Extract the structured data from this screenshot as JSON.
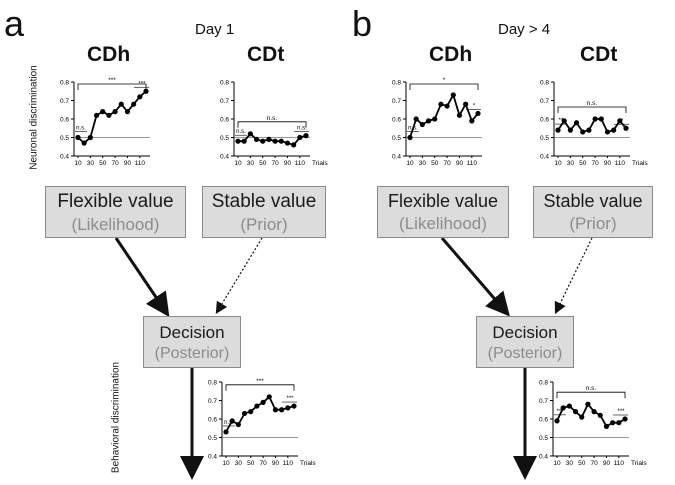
{
  "panels": [
    {
      "letter": "a",
      "day": "Day 1",
      "cdh_title": "CDh",
      "cdt_title": "CDt",
      "flexible": {
        "label": "Flexible value",
        "sub": "(Likelihood)"
      },
      "stable": {
        "label": "Stable value",
        "sub": "(Prior)"
      },
      "decision": {
        "label": "Decision",
        "sub": "(Posterior)"
      }
    },
    {
      "letter": "b",
      "day": "Day > 4",
      "cdh_title": "CDh",
      "cdt_title": "CDt",
      "flexible": {
        "label": "Flexible value",
        "sub": "(Likelihood)"
      },
      "stable": {
        "label": "Stable value",
        "sub": "(Prior)"
      },
      "decision": {
        "label": "Decision",
        "sub": "(Posterior)"
      }
    }
  ],
  "ylabels": {
    "neuronal": "Neuronal discrimination",
    "behavioral": "Behavioral discrimination"
  },
  "chart_data": [
    {
      "id": "a-cdh",
      "type": "line",
      "trials_label": "",
      "x": [
        10,
        20,
        30,
        40,
        50,
        60,
        70,
        80,
        90,
        100,
        110,
        120
      ],
      "y": [
        0.5,
        0.47,
        0.5,
        0.62,
        0.64,
        0.62,
        0.64,
        0.68,
        0.64,
        0.68,
        0.72,
        0.75
      ],
      "ylim": [
        0.4,
        0.8
      ],
      "yticks": [
        "0.4",
        "0.5",
        "0.6",
        "0.7",
        "0.8"
      ],
      "xticks": [
        "10",
        "30",
        "50",
        "70",
        "90",
        "110"
      ],
      "notes": {
        "start": "n.s.",
        "bracket": "***",
        "end": "***"
      }
    },
    {
      "id": "a-cdt",
      "type": "line",
      "trials_label": "Trials",
      "x": [
        10,
        20,
        30,
        40,
        50,
        60,
        70,
        80,
        90,
        100,
        110,
        120
      ],
      "y": [
        0.48,
        0.48,
        0.52,
        0.49,
        0.48,
        0.49,
        0.48,
        0.48,
        0.47,
        0.46,
        0.5,
        0.51
      ],
      "ylim": [
        0.4,
        0.8
      ],
      "yticks": [
        "0.4",
        "0.5",
        "0.6",
        "0.7",
        "0.8"
      ],
      "xticks": [
        "10",
        "30",
        "50",
        "70",
        "90",
        "110"
      ],
      "notes": {
        "start": "n.s.",
        "bracket": "n.s.",
        "end": "n.s."
      }
    },
    {
      "id": "b-cdh",
      "type": "line",
      "trials_label": "",
      "x": [
        10,
        20,
        30,
        40,
        50,
        60,
        70,
        80,
        90,
        100,
        110,
        120
      ],
      "y": [
        0.5,
        0.6,
        0.57,
        0.59,
        0.6,
        0.68,
        0.67,
        0.73,
        0.62,
        0.68,
        0.59,
        0.63
      ],
      "ylim": [
        0.4,
        0.8
      ],
      "yticks": [
        "0.4",
        "0.5",
        "0.6",
        "0.7",
        "0.8"
      ],
      "xticks": [
        "10",
        "30",
        "50",
        "70",
        "90",
        "110"
      ],
      "notes": {
        "start": "n.s.",
        "bracket": "*",
        "end": "*"
      }
    },
    {
      "id": "b-cdt",
      "type": "line",
      "trials_label": "Trials",
      "x": [
        10,
        20,
        30,
        40,
        50,
        60,
        70,
        80,
        90,
        100,
        110,
        120
      ],
      "y": [
        0.54,
        0.59,
        0.54,
        0.58,
        0.53,
        0.54,
        0.6,
        0.6,
        0.53,
        0.54,
        0.59,
        0.55
      ],
      "ylim": [
        0.4,
        0.8
      ],
      "yticks": [
        "0.4",
        "0.5",
        "0.6",
        "0.7",
        "0.8"
      ],
      "xticks": [
        "10",
        "30",
        "50",
        "70",
        "90",
        "110"
      ],
      "notes": {
        "start": "**",
        "bracket": "n.s.",
        "end": "*"
      }
    },
    {
      "id": "a-beh",
      "type": "line",
      "trials_label": "Trials",
      "x": [
        10,
        20,
        30,
        40,
        50,
        60,
        70,
        80,
        90,
        100,
        110,
        120
      ],
      "y": [
        0.53,
        0.59,
        0.57,
        0.63,
        0.64,
        0.67,
        0.69,
        0.72,
        0.65,
        0.65,
        0.66,
        0.67
      ],
      "ylim": [
        0.4,
        0.8
      ],
      "yticks": [
        "0.4",
        "0.5",
        "0.6",
        "0.7",
        "0.8"
      ],
      "xticks": [
        "10",
        "30",
        "50",
        "70",
        "90",
        "110"
      ],
      "notes": {
        "start": "n.s.",
        "bracket": "***",
        "end": "***"
      }
    },
    {
      "id": "b-beh",
      "type": "line",
      "trials_label": "Trials",
      "x": [
        10,
        20,
        30,
        40,
        50,
        60,
        70,
        80,
        90,
        100,
        110,
        120
      ],
      "y": [
        0.59,
        0.66,
        0.67,
        0.64,
        0.61,
        0.68,
        0.64,
        0.62,
        0.56,
        0.58,
        0.58,
        0.6
      ],
      "ylim": [
        0.4,
        0.8
      ],
      "yticks": [
        "0.4",
        "0.5",
        "0.6",
        "0.7",
        "0.8"
      ],
      "xticks": [
        "10",
        "30",
        "50",
        "70",
        "90",
        "110"
      ],
      "notes": {
        "start": "***",
        "bracket": "n.s.",
        "end": "***"
      }
    }
  ]
}
